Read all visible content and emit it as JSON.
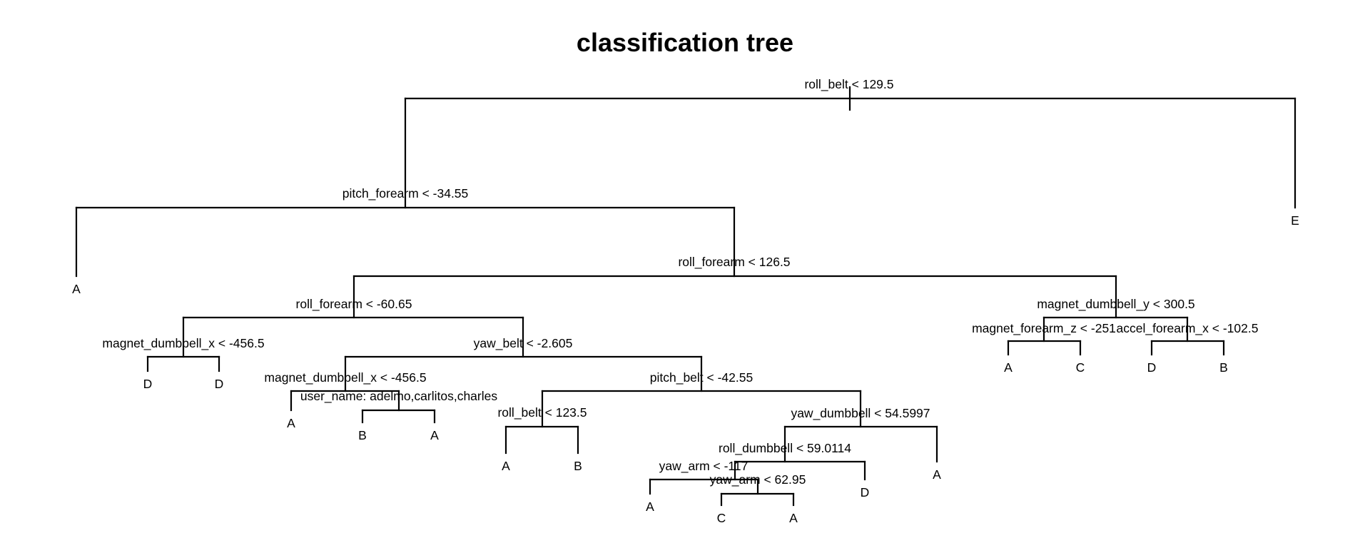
{
  "title": "classification tree",
  "tree": {
    "split": "roll_belt < 129.5",
    "left": {
      "split": "pitch_forearm < -34.55",
      "left": {
        "leaf": "A"
      },
      "right": {
        "split": "roll_forearm < 126.5",
        "left": {
          "split": "roll_forearm < -60.65",
          "left": {
            "split": "magnet_dumbbell_x < -456.5",
            "left": {
              "leaf": "D"
            },
            "right": {
              "leaf": "D"
            }
          },
          "right": {
            "split": "yaw_belt < -2.605",
            "left": {
              "split": "magnet_dumbbell_x < -456.5",
              "left": {
                "leaf": "A"
              },
              "right": {
                "split": "user_name: adelmo,carlitos,charles",
                "left": {
                  "leaf": "B"
                },
                "right": {
                  "leaf": "A"
                }
              }
            },
            "right": {
              "split": "pitch_belt < -42.55",
              "left": {
                "split": "roll_belt < 123.5",
                "left": {
                  "leaf": "A"
                },
                "right": {
                  "leaf": "B"
                }
              },
              "right": {
                "split": "yaw_dumbbell < 54.5997",
                "left": {
                  "split": "roll_dumbbell < 59.0114",
                  "left": {
                    "split": "yaw_arm < -117",
                    "left": {
                      "leaf": "A"
                    },
                    "right": {
                      "split": "yaw_arm < 62.95",
                      "left": {
                        "leaf": "C"
                      },
                      "right": {
                        "leaf": "A"
                      }
                    }
                  },
                  "right": {
                    "leaf": "D"
                  }
                },
                "right": {
                  "leaf": "A"
                }
              }
            }
          }
        },
        "right": {
          "split": "magnet_dumbbell_y < 300.5",
          "left": {
            "split": "magnet_forearm_z < -251",
            "left": {
              "leaf": "A"
            },
            "right": {
              "leaf": "C"
            }
          },
          "right": {
            "split": "accel_forearm_x < -102.5",
            "left": {
              "leaf": "D"
            },
            "right": {
              "leaf": "B"
            }
          }
        }
      }
    },
    "right": {
      "leaf": "E"
    }
  }
}
